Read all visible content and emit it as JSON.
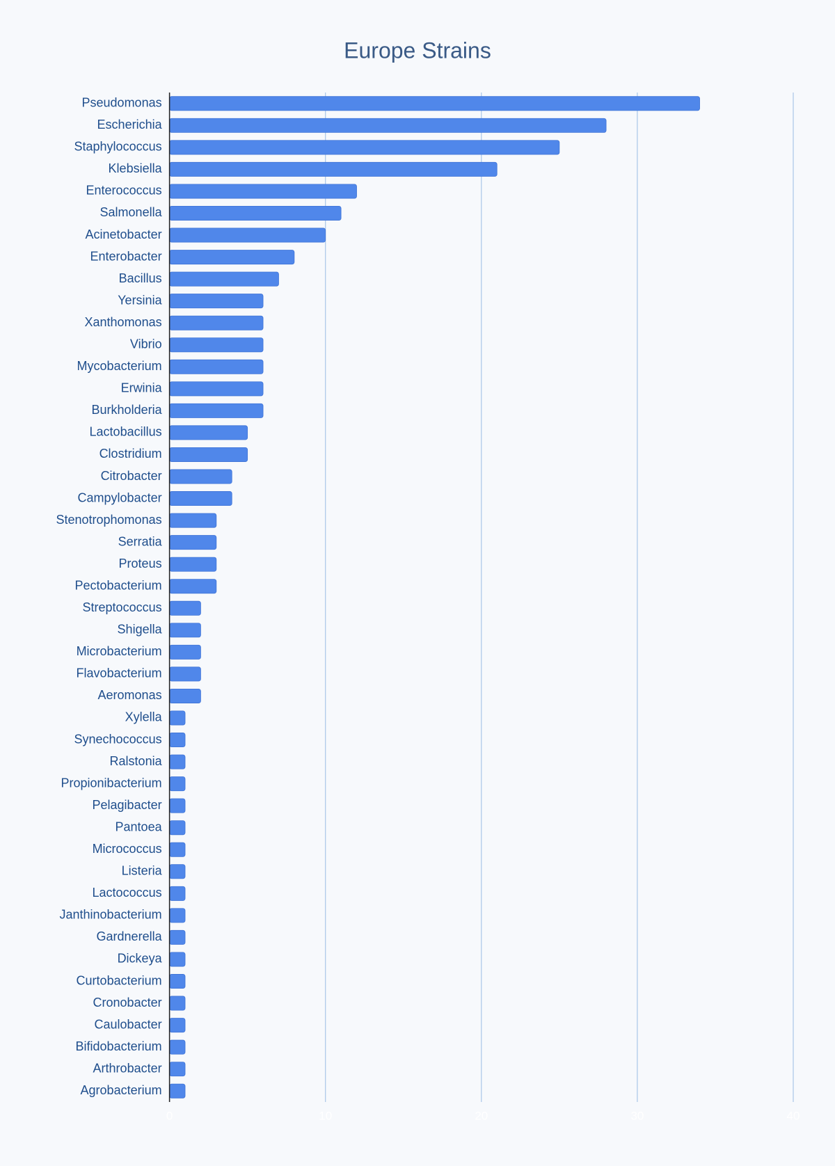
{
  "chart_data": {
    "type": "hbar",
    "title": "Europe Strains",
    "categories": [
      "Pseudomonas",
      "Escherichia",
      "Staphylococcus",
      "Klebsiella",
      "Enterococcus",
      "Salmonella",
      "Acinetobacter",
      "Enterobacter",
      "Bacillus",
      "Yersinia",
      "Xanthomonas",
      "Vibrio",
      "Mycobacterium",
      "Erwinia",
      "Burkholderia",
      "Lactobacillus",
      "Clostridium",
      "Citrobacter",
      "Campylobacter",
      "Stenotrophomonas",
      "Serratia",
      "Proteus",
      "Pectobacterium",
      "Streptococcus",
      "Shigella",
      "Microbacterium",
      "Flavobacterium",
      "Aeromonas",
      "Xylella",
      "Synechococcus",
      "Ralstonia",
      "Propionibacterium",
      "Pelagibacter",
      "Pantoea",
      "Micrococcus",
      "Listeria",
      "Lactococcus",
      "Janthinobacterium",
      "Gardnerella",
      "Dickeya",
      "Curtobacterium",
      "Cronobacter",
      "Caulobacter",
      "Bifidobacterium",
      "Arthrobacter",
      "Agrobacterium"
    ],
    "values": [
      34,
      28,
      25,
      21,
      12,
      11,
      10,
      8,
      7,
      6,
      6,
      6,
      6,
      6,
      6,
      5,
      5,
      4,
      4,
      3,
      3,
      3,
      3,
      2,
      2,
      2,
      2,
      2,
      1,
      1,
      1,
      1,
      1,
      1,
      1,
      1,
      1,
      1,
      1,
      1,
      1,
      1,
      1,
      1,
      1,
      1
    ],
    "color": "#5087ea",
    "xlim": [
      0,
      40
    ],
    "xticks": [
      0,
      10,
      20,
      30,
      40
    ],
    "grid": true
  }
}
